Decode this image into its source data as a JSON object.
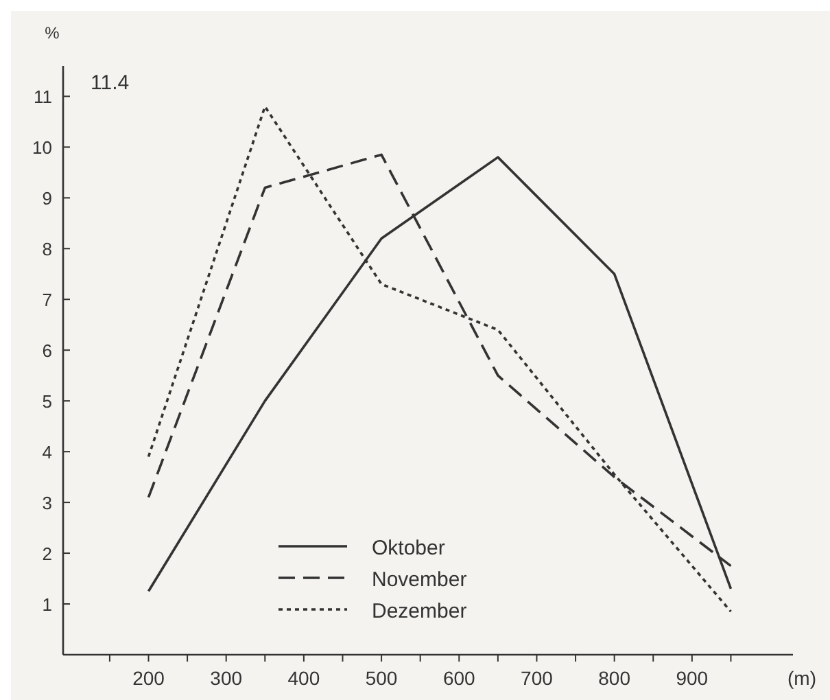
{
  "chart_data": {
    "type": "line",
    "title": "11.4",
    "xlabel": "(m)",
    "ylabel": "%",
    "x": [
      200,
      350,
      500,
      650,
      800,
      950
    ],
    "xlim": [
      90,
      1030
    ],
    "xticks": [
      {
        "value": 150,
        "label": null
      },
      200,
      {
        "value": 250,
        "label": null
      },
      300,
      {
        "value": 350,
        "label": null
      },
      400,
      {
        "value": 450,
        "label": null
      },
      500,
      {
        "value": 550,
        "label": null
      },
      600,
      {
        "value": 650,
        "label": null
      },
      700,
      {
        "value": 750,
        "label": null
      },
      800,
      {
        "value": 850,
        "label": null
      },
      900,
      {
        "value": 950,
        "label": null
      }
    ],
    "ylim": [
      0,
      11.6
    ],
    "yticks": [
      1,
      2,
      3,
      4,
      5,
      6,
      7,
      8,
      9,
      10,
      11
    ],
    "grid": false,
    "legend": "bottom",
    "marker": "none",
    "series": [
      {
        "name": "Oktober",
        "color": "#333333",
        "line_style": "solid",
        "values": [
          1.25,
          5.0,
          8.2,
          9.8,
          7.5,
          1.3
        ]
      },
      {
        "name": "November",
        "color": "#333333",
        "line_style": "dashed",
        "values": [
          3.1,
          9.2,
          9.85,
          5.5,
          3.5,
          1.75
        ]
      },
      {
        "name": "Dezember",
        "color": "#333333",
        "line_style": "dotted",
        "values": [
          3.9,
          10.8,
          7.3,
          6.4,
          3.55,
          0.85
        ]
      }
    ]
  }
}
